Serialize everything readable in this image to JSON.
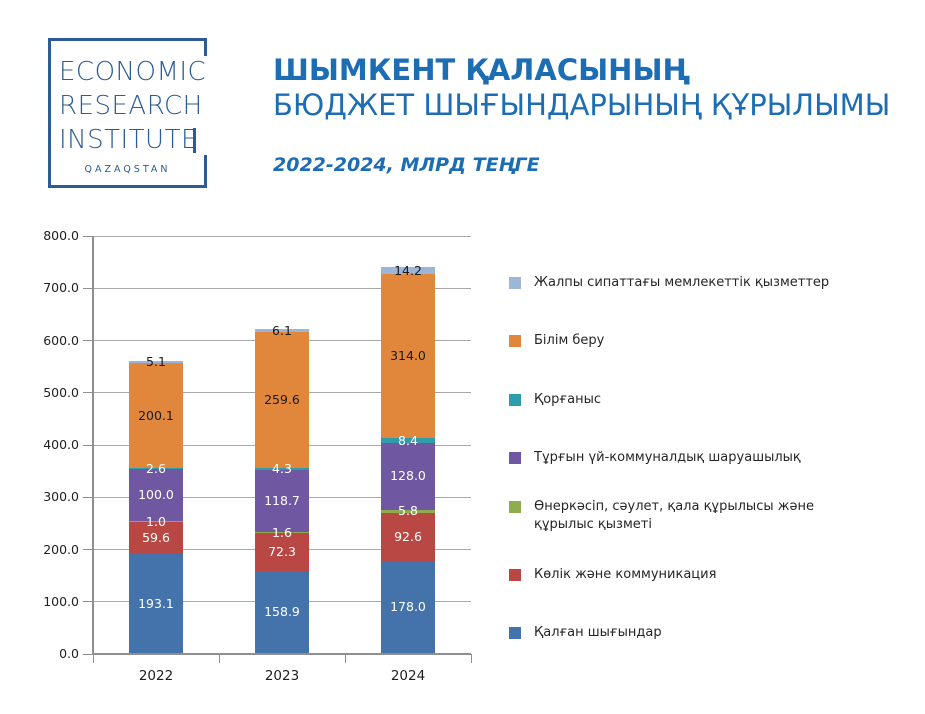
{
  "logo": {
    "lines": [
      "ECONOMIC",
      "RESEARCH",
      "INSTITUTE"
    ],
    "subtext": "QAZAQSTAN",
    "color": "#2b5c97"
  },
  "header": {
    "title_bold": "ШЫМКЕНТ ҚАЛАСЫНЫҢ",
    "title_regular": "БЮДЖЕТ ШЫҒЫНДАРЫНЫҢ ҚҰРЫЛЫМЫ",
    "subtitle": "2022-2024, МЛРД ТЕҢГЕ",
    "accent_color": "#1d6db4"
  },
  "chart_data": {
    "type": "bar",
    "stacked": true,
    "title": "Шымкент қаласының бюджет шығындарының құрылымы, 2022-2024, млрд теңге",
    "categories": [
      "2022",
      "2023",
      "2024"
    ],
    "series": [
      {
        "name": "Қалған шығындар",
        "color": "#4473ab",
        "label_color": "#ffffff",
        "values": [
          193.1,
          158.9,
          178.0
        ]
      },
      {
        "name": "Көлік және коммуникация",
        "color": "#b94743",
        "label_color": "#ffffff",
        "values": [
          59.6,
          72.3,
          92.6
        ]
      },
      {
        "name": "Өнеркәсіп, сәулет, қала құрылысы және құрылыс қызметі",
        "color": "#8ead4e",
        "label_color": "#ffffff",
        "values": [
          1.0,
          1.6,
          5.8
        ]
      },
      {
        "name": "Тұрғын үй-коммуналдық шаруашылық",
        "color": "#6f58a1",
        "label_color": "#ffffff",
        "values": [
          100.0,
          118.7,
          128.0
        ]
      },
      {
        "name": "Қорғаныс",
        "color": "#2f9cae",
        "label_color": "#ffffff",
        "values": [
          2.6,
          4.3,
          8.4
        ]
      },
      {
        "name": "Білім беру",
        "color": "#e1873c",
        "label_color": "#1a1a1a",
        "values": [
          200.1,
          259.6,
          314.0
        ]
      },
      {
        "name": "Жалпы сипаттағы мемлекеттік қызметтер",
        "color": "#9cb6da",
        "label_color": "#1a1a1a",
        "values": [
          5.1,
          6.1,
          14.2
        ]
      }
    ],
    "legend_order_top_to_bottom": [
      6,
      5,
      4,
      3,
      2,
      1,
      0
    ],
    "ylim": [
      0,
      800
    ],
    "ytick_step": 100,
    "ytick_labels": [
      "0.0",
      "100.0",
      "200.0",
      "300.0",
      "400.0",
      "500.0",
      "600.0",
      "700.0",
      "800.0"
    ],
    "grid": true,
    "legend_position": "right",
    "gridline_color": "#a9a9a9",
    "axis_color": "#8f8f8f"
  }
}
